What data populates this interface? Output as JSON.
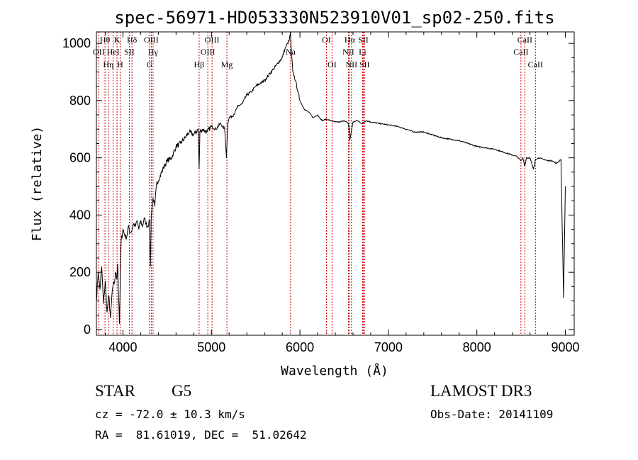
{
  "chart_data": {
    "type": "line",
    "title": "spec-56971-HD053330N523910V01_sp02-250.fits",
    "xlabel": "Wavelength (Å)",
    "ylabel": "Flux (relative)",
    "xlim": [
      3700,
      9100
    ],
    "ylim": [
      -20,
      1040
    ],
    "x_ticks": [
      4000,
      5000,
      6000,
      7000,
      8000,
      9000
    ],
    "y_ticks": [
      0,
      200,
      400,
      600,
      800,
      1000
    ],
    "line_color": "#cc0000",
    "spectrum_color": "#000000",
    "series": [
      {
        "name": "flux",
        "x": [
          3700,
          3720,
          3740,
          3760,
          3780,
          3800,
          3820,
          3840,
          3860,
          3880,
          3900,
          3920,
          3933,
          3940,
          3960,
          3968,
          3980,
          4000,
          4020,
          4040,
          4060,
          4080,
          4100,
          4120,
          4140,
          4160,
          4180,
          4200,
          4220,
          4240,
          4260,
          4280,
          4300,
          4310,
          4320,
          4340,
          4360,
          4380,
          4400,
          4450,
          4500,
          4550,
          4600,
          4650,
          4700,
          4750,
          4800,
          4850,
          4861,
          4870,
          4900,
          4950,
          5000,
          5050,
          5100,
          5150,
          5170,
          5183,
          5200,
          5250,
          5300,
          5350,
          5400,
          5450,
          5500,
          5550,
          5600,
          5650,
          5700,
          5750,
          5800,
          5830,
          5860,
          5880,
          5893,
          5900,
          5920,
          5950,
          6000,
          6050,
          6100,
          6150,
          6200,
          6250,
          6300,
          6350,
          6400,
          6450,
          6500,
          6550,
          6563,
          6600,
          6650,
          6700,
          6750,
          6800,
          6900,
          7000,
          7100,
          7200,
          7300,
          7400,
          7500,
          7600,
          7700,
          7800,
          7900,
          8000,
          8100,
          8200,
          8300,
          8400,
          8450,
          8498,
          8520,
          8542,
          8560,
          8600,
          8640,
          8662,
          8700,
          8750,
          8800,
          8850,
          8900,
          8950,
          8980,
          9000
        ],
        "y": [
          100,
          200,
          140,
          220,
          90,
          170,
          60,
          120,
          40,
          140,
          160,
          200,
          180,
          230,
          20,
          150,
          310,
          350,
          330,
          320,
          360,
          340,
          345,
          370,
          360,
          380,
          350,
          380,
          360,
          390,
          370,
          360,
          380,
          220,
          400,
          460,
          430,
          510,
          520,
          560,
          590,
          600,
          640,
          650,
          670,
          690,
          680,
          700,
          560,
          690,
          700,
          690,
          710,
          700,
          720,
          700,
          600,
          720,
          740,
          750,
          780,
          790,
          820,
          830,
          850,
          860,
          870,
          890,
          910,
          930,
          950,
          980,
          1000,
          1010,
          1040,
          990,
          900,
          870,
          800,
          770,
          760,
          740,
          750,
          730,
          735,
          730,
          725,
          725,
          730,
          720,
          660,
          725,
          730,
          720,
          730,
          725,
          720,
          715,
          710,
          700,
          690,
          690,
          680,
          670,
          665,
          660,
          650,
          640,
          635,
          630,
          620,
          610,
          605,
          590,
          600,
          570,
          600,
          600,
          560,
          595,
          600,
          595,
          590,
          590,
          580,
          595,
          110,
          500
        ]
      }
    ],
    "lines": [
      {
        "name": "OII",
        "wave": 3727,
        "row": 2
      },
      {
        "name": "Hθ",
        "wave": 3797,
        "row": 1
      },
      {
        "name": "Hη",
        "wave": 3835,
        "row": 3
      },
      {
        "name": "HeI",
        "wave": 3889,
        "row": 2
      },
      {
        "name": "K",
        "wave": 3933,
        "row": 1
      },
      {
        "name": "H",
        "wave": 3968,
        "row": 3
      },
      {
        "name": "SII",
        "wave": 4072,
        "row": 2
      },
      {
        "name": "Hδ",
        "wave": 4102,
        "row": 1
      },
      {
        "name": "G",
        "wave": 4300,
        "row": 3
      },
      {
        "name": "OIII",
        "wave": 4320,
        "row": 1
      },
      {
        "name": "Hγ",
        "wave": 4340,
        "row": 2
      },
      {
        "name": "Hβ",
        "wave": 4861,
        "row": 3
      },
      {
        "name": "OIII",
        "wave": 4959,
        "row": 2
      },
      {
        "name": "OIII",
        "wave": 5007,
        "row": 1
      },
      {
        "name": "Mg",
        "wave": 5175,
        "row": 3
      },
      {
        "name": "Na",
        "wave": 5894,
        "row": 2
      },
      {
        "name": "OI",
        "wave": 6300,
        "row": 1
      },
      {
        "name": "OI",
        "wave": 6363,
        "row": 3
      },
      {
        "name": "NII",
        "wave": 6548,
        "row": 2
      },
      {
        "name": "Hα",
        "wave": 6563,
        "row": 1
      },
      {
        "name": "NII",
        "wave": 6583,
        "row": 3
      },
      {
        "name": "Li",
        "wave": 6708,
        "row": 2
      },
      {
        "name": "SII",
        "wave": 6716,
        "row": 1
      },
      {
        "name": "SII",
        "wave": 6731,
        "row": 3
      },
      {
        "name": "CaII",
        "wave": 8498,
        "row": 2
      },
      {
        "name": "CaII",
        "wave": 8542,
        "row": 1
      },
      {
        "name": "CaII",
        "wave": 8662,
        "row": 3
      }
    ]
  },
  "info": {
    "class_label": "STAR",
    "subclass": "G5",
    "survey": "LAMOST DR3",
    "cz": "cz = -72.0 ± 10.3 km/s",
    "obs_date": "Obs-Date: 20141109",
    "coords": "RA =  81.61019, DEC =  51.02642"
  }
}
